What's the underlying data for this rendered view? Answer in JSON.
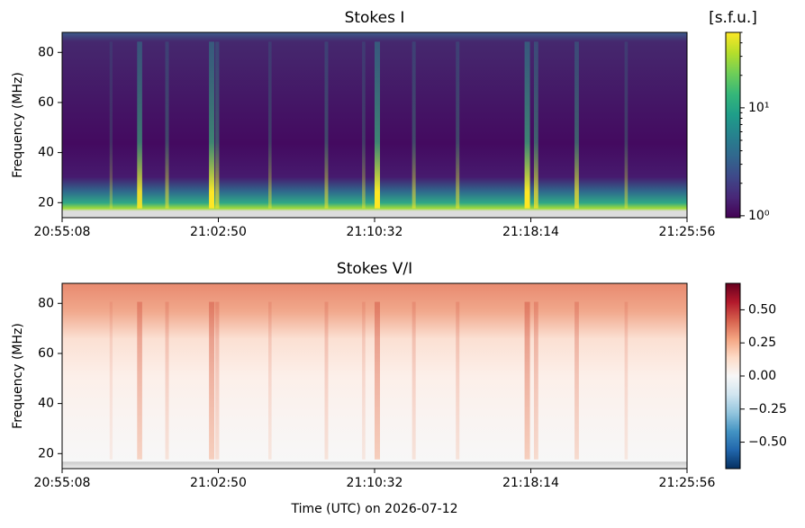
{
  "chart_data": [
    {
      "type": "heatmap",
      "title": "Stokes I",
      "ylabel": "Frequency (MHz)",
      "xlim": [
        0,
        1848
      ],
      "xticks": [
        {
          "value": 0,
          "label": "20:55:08"
        },
        {
          "value": 462,
          "label": "21:02:50"
        },
        {
          "value": 924,
          "label": "21:10:32"
        },
        {
          "value": 1386,
          "label": "21:18:14"
        },
        {
          "value": 1848,
          "label": "21:25:56"
        }
      ],
      "ylim": [
        14,
        88
      ],
      "yticks": [
        20,
        40,
        60,
        80
      ],
      "colormap": "viridis",
      "color_scale": "log",
      "colorbar_label": "[s.f.u.]",
      "clim": [
        0.96,
        50
      ],
      "cticks": [
        {
          "value": 1,
          "label": "10⁰"
        },
        {
          "value": 10,
          "label": "10¹"
        }
      ]
    },
    {
      "type": "heatmap",
      "title": "Stokes V/I",
      "ylabel": "Frequency (MHz)",
      "xlabel": "Time (UTC) on 2026-07-12",
      "xlim": [
        0,
        1848
      ],
      "xticks": [
        {
          "value": 0,
          "label": "20:55:08"
        },
        {
          "value": 462,
          "label": "21:02:50"
        },
        {
          "value": 924,
          "label": "21:10:32"
        },
        {
          "value": 1386,
          "label": "21:18:14"
        },
        {
          "value": 1848,
          "label": "21:25:56"
        }
      ],
      "ylim": [
        14,
        88
      ],
      "yticks": [
        20,
        40,
        60,
        80
      ],
      "colormap": "RdBu_r",
      "color_scale": "linear",
      "clim": [
        -0.7,
        0.7
      ],
      "cticks": [
        {
          "value": -0.5,
          "label": "−0.50"
        },
        {
          "value": -0.25,
          "label": "−0.25"
        },
        {
          "value": 0,
          "label": "0.00"
        },
        {
          "value": 0.25,
          "label": "0.25"
        },
        {
          "value": 0.5,
          "label": "0.50"
        }
      ]
    }
  ]
}
